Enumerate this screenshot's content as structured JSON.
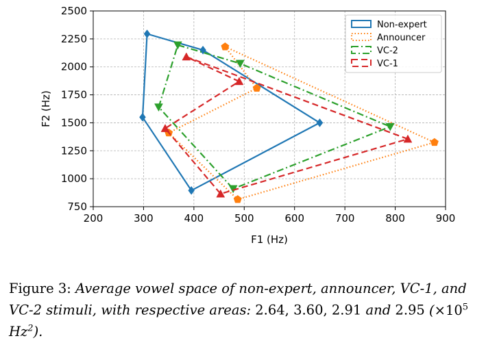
{
  "chart_data": {
    "type": "line",
    "xlabel": "F1 (Hz)",
    "ylabel": "F2 (Hz)",
    "xlim": [
      200,
      900
    ],
    "ylim": [
      750,
      2500
    ],
    "xticks": [
      200,
      300,
      400,
      500,
      600,
      700,
      800,
      900
    ],
    "yticks": [
      750,
      1000,
      1250,
      1500,
      1750,
      2000,
      2250,
      2500
    ],
    "grid": true,
    "legend_position": "top-right",
    "series": [
      {
        "name": "Non-expert",
        "color": "#1f77b4",
        "linestyle": "solid",
        "marker": "diamond",
        "points": [
          [
            307,
            2295
          ],
          [
            418,
            2150
          ],
          [
            650,
            1500
          ],
          [
            395,
            895
          ],
          [
            298,
            1550
          ]
        ]
      },
      {
        "name": "Announcer",
        "color": "#ff7f0e",
        "linestyle": "dotted",
        "marker": "pentagon",
        "points": [
          [
            462,
            2180
          ],
          [
            878,
            1325
          ],
          [
            487,
            815
          ],
          [
            350,
            1410
          ],
          [
            525,
            1810
          ]
        ]
      },
      {
        "name": "VC-2",
        "color": "#2ca02c",
        "linestyle": "dashdot",
        "marker": "triangle-down",
        "points": [
          [
            368,
            2195
          ],
          [
            492,
            2030
          ],
          [
            790,
            1465
          ],
          [
            478,
            910
          ],
          [
            330,
            1640
          ]
        ]
      },
      {
        "name": "VC-1",
        "color": "#d62728",
        "linestyle": "dashed",
        "marker": "triangle-up",
        "points": [
          [
            385,
            2090
          ],
          [
            825,
            1355
          ],
          [
            453,
            865
          ],
          [
            343,
            1450
          ],
          [
            490,
            1870
          ]
        ]
      }
    ]
  },
  "caption": {
    "label": "Figure 3:",
    "text_italic": "Average vowel space of non-expert, announcer, VC-1, and VC-2 stimuli, with respective areas:",
    "values": "2.64, 3.60, 2.91",
    "and_word": "and",
    "last_value": "2.95",
    "unit_open": "(",
    "unit_times": "×10",
    "unit_exp": "5",
    "unit_hz": "Hz",
    "unit_hz_exp": "2",
    "unit_close": ")."
  }
}
